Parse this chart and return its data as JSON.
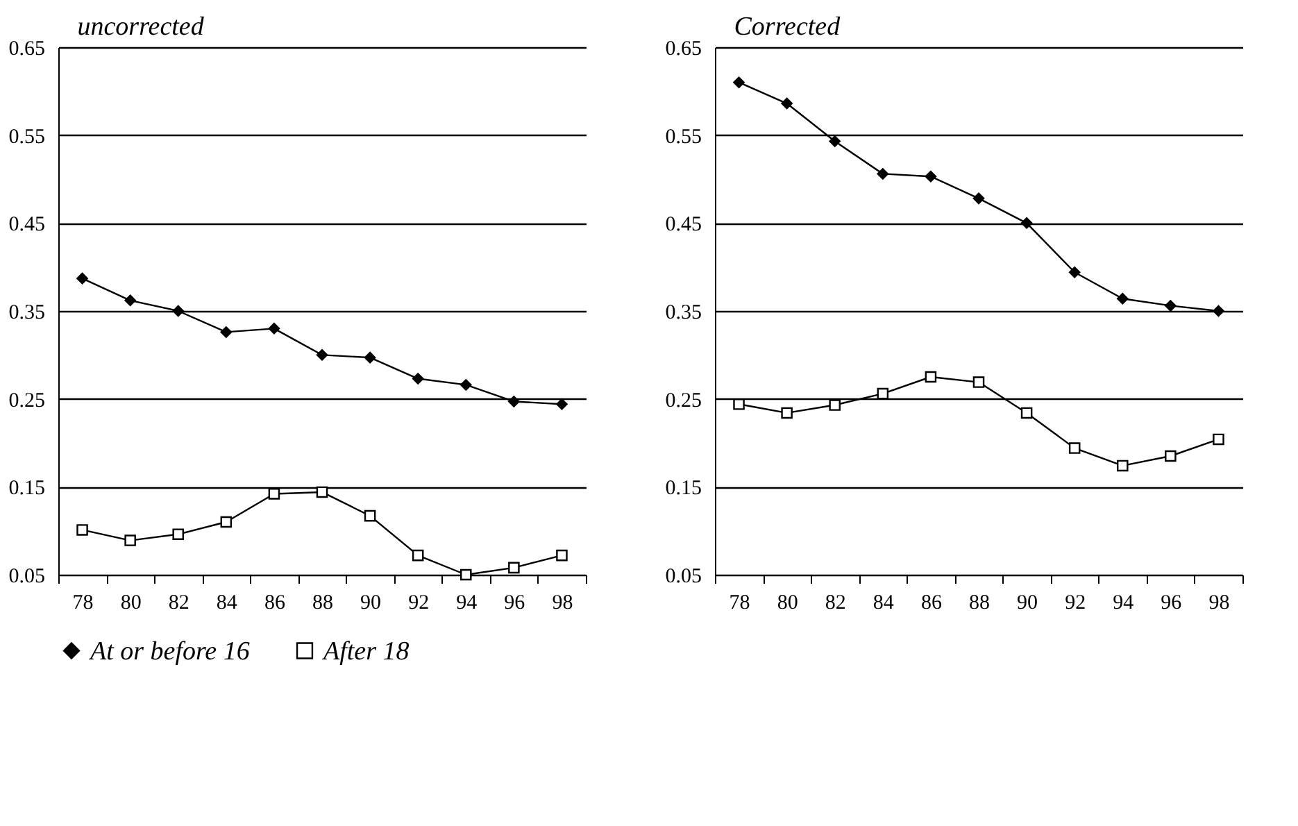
{
  "chart_data": [
    {
      "type": "line",
      "title": "uncorrected",
      "categories": [
        "78",
        "80",
        "82",
        "84",
        "86",
        "88",
        "90",
        "92",
        "94",
        "96",
        "98"
      ],
      "ylim": [
        0.05,
        0.65
      ],
      "yticks": [
        0.05,
        0.15,
        0.25,
        0.35,
        0.45,
        0.55,
        0.65
      ],
      "grid": "y",
      "legend": "bottom",
      "series": [
        {
          "name": "At or before 16",
          "color": "#000000",
          "marker": "diamond",
          "values": [
            0.387,
            0.362,
            0.35,
            0.326,
            0.33,
            0.3,
            0.297,
            0.273,
            0.266,
            0.247,
            0.244
          ]
        },
        {
          "name": "After 18",
          "color": "#000000",
          "marker": "square",
          "values": [
            0.101,
            0.089,
            0.096,
            0.11,
            0.142,
            0.144,
            0.117,
            0.072,
            0.05,
            0.058,
            0.072
          ]
        }
      ]
    },
    {
      "type": "line",
      "title": "Corrected",
      "categories": [
        "78",
        "80",
        "82",
        "84",
        "86",
        "88",
        "90",
        "92",
        "94",
        "96",
        "98"
      ],
      "ylim": [
        0.05,
        0.65
      ],
      "yticks": [
        0.05,
        0.15,
        0.25,
        0.35,
        0.45,
        0.55,
        0.65
      ],
      "grid": "y",
      "legend": "bottom",
      "series": [
        {
          "name": "At or before 16",
          "color": "#000000",
          "marker": "diamond",
          "values": [
            0.61,
            0.586,
            0.543,
            0.506,
            0.503,
            0.478,
            0.45,
            0.394,
            0.364,
            0.356,
            0.35
          ]
        },
        {
          "name": "After 18",
          "color": "#000000",
          "marker": "square",
          "values": [
            0.244,
            0.234,
            0.243,
            0.256,
            0.275,
            0.269,
            0.234,
            0.194,
            0.174,
            0.185,
            0.204
          ]
        }
      ]
    }
  ]
}
